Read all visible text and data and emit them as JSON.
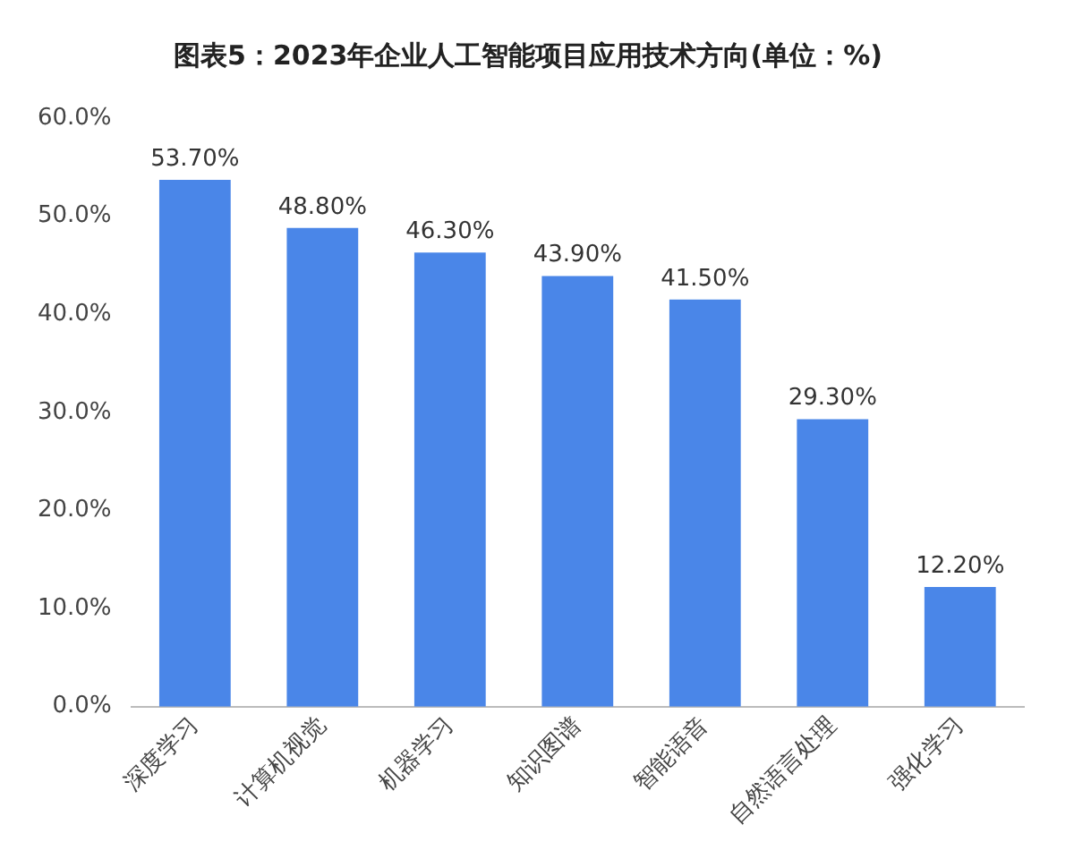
{
  "chart_data": {
    "type": "bar",
    "title": "图表5：2023年企业人工智能项目应用技术方向(单位：%)",
    "categories": [
      "深度学习",
      "计算机视觉",
      "机器学习",
      "知识图谱",
      "智能语音",
      "自然语言处理",
      "强化学习"
    ],
    "values": [
      53.7,
      48.8,
      46.3,
      43.9,
      41.5,
      29.3,
      12.2
    ],
    "value_labels": [
      "53.70%",
      "48.80%",
      "46.30%",
      "43.90%",
      "41.50%",
      "29.30%",
      "12.20%"
    ],
    "color": "#4a86e8",
    "ylim": [
      0,
      60
    ],
    "yticks": [
      {
        "value": 0,
        "label": "0.0%"
      },
      {
        "value": 10,
        "label": "10.0%"
      },
      {
        "value": 20,
        "label": "20.0%"
      },
      {
        "value": 30,
        "label": "30.0%"
      },
      {
        "value": 40,
        "label": "40.0%"
      },
      {
        "value": 50,
        "label": "50.0%"
      },
      {
        "value": 60,
        "label": "60.0%"
      }
    ],
    "grid": false,
    "legend": false
  }
}
